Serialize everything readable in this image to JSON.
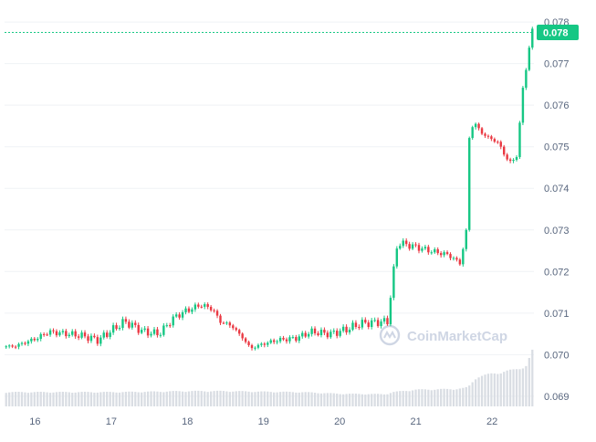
{
  "colors": {
    "up": "#16c784",
    "down": "#ea3943",
    "grid": "#eff2f5",
    "volume": "#d9dde3",
    "badge": "#16c784"
  },
  "watermark": {
    "text": "CoinMarketCap",
    "icon": "coinmarketcap-logo-icon"
  },
  "current_price": {
    "label": "0.078",
    "value": 0.07775
  },
  "chart_data": {
    "type": "candlestick",
    "title": "",
    "xlabel": "",
    "ylabel": "",
    "ylim": [
      0.0688,
      0.0782
    ],
    "y_ticks": [
      {
        "label": "0.078",
        "value": 0.078
      },
      {
        "label": "0.077",
        "value": 0.077
      },
      {
        "label": "0.076",
        "value": 0.076
      },
      {
        "label": "0.075",
        "value": 0.075
      },
      {
        "label": "0.074",
        "value": 0.074
      },
      {
        "label": "0.073",
        "value": 0.073
      },
      {
        "label": "0.072",
        "value": 0.072
      },
      {
        "label": "0.071",
        "value": 0.071
      },
      {
        "label": "0.070",
        "value": 0.07
      },
      {
        "label": "0.069",
        "value": 0.069
      }
    ],
    "x_range": [
      15.6,
      22.55
    ],
    "x_ticks": [
      {
        "label": "16",
        "value": 16
      },
      {
        "label": "17",
        "value": 17
      },
      {
        "label": "18",
        "value": 18
      },
      {
        "label": "19",
        "value": 19
      },
      {
        "label": "20",
        "value": 20
      },
      {
        "label": "21",
        "value": 21
      },
      {
        "label": "22",
        "value": 22
      }
    ],
    "grid": true,
    "close_anchors": [
      [
        15.6,
        0.0702
      ],
      [
        15.75,
        0.0702
      ],
      [
        15.9,
        0.0703
      ],
      [
        16.05,
        0.0704
      ],
      [
        16.2,
        0.07055
      ],
      [
        16.45,
        0.0705
      ],
      [
        16.65,
        0.07045
      ],
      [
        16.85,
        0.07035
      ],
      [
        17.0,
        0.07055
      ],
      [
        17.2,
        0.0708
      ],
      [
        17.45,
        0.07055
      ],
      [
        17.65,
        0.0705
      ],
      [
        17.85,
        0.0709
      ],
      [
        18.0,
        0.07105
      ],
      [
        18.2,
        0.0712
      ],
      [
        18.35,
        0.0711
      ],
      [
        18.45,
        0.0708
      ],
      [
        18.6,
        0.0707
      ],
      [
        18.75,
        0.0704
      ],
      [
        18.85,
        0.07015
      ],
      [
        19.0,
        0.07025
      ],
      [
        19.2,
        0.07035
      ],
      [
        19.45,
        0.0704
      ],
      [
        19.65,
        0.07055
      ],
      [
        19.9,
        0.0705
      ],
      [
        20.1,
        0.0706
      ],
      [
        20.3,
        0.07075
      ],
      [
        20.65,
        0.0708
      ],
      [
        20.72,
        0.0719
      ],
      [
        20.78,
        0.0727
      ],
      [
        21.0,
        0.0726
      ],
      [
        21.2,
        0.0725
      ],
      [
        21.45,
        0.0724
      ],
      [
        21.6,
        0.0722
      ],
      [
        21.68,
        0.0729
      ],
      [
        21.72,
        0.0752
      ],
      [
        21.78,
        0.0756
      ],
      [
        21.9,
        0.0753
      ],
      [
        22.1,
        0.0751
      ],
      [
        22.25,
        0.0746
      ],
      [
        22.35,
        0.0748
      ],
      [
        22.43,
        0.0765
      ],
      [
        22.55,
        0.0778
      ]
    ],
    "volume_profile": [
      [
        15.6,
        0.7
      ],
      [
        16.0,
        0.7
      ],
      [
        16.5,
        0.7
      ],
      [
        17.0,
        0.7
      ],
      [
        17.5,
        0.72
      ],
      [
        18.0,
        0.75
      ],
      [
        18.5,
        0.75
      ],
      [
        19.0,
        0.72
      ],
      [
        19.5,
        0.7
      ],
      [
        20.0,
        0.62
      ],
      [
        20.6,
        0.6
      ],
      [
        20.7,
        0.7
      ],
      [
        21.0,
        0.82
      ],
      [
        21.5,
        0.85
      ],
      [
        21.65,
        0.9
      ],
      [
        21.7,
        1.0
      ],
      [
        21.8,
        1.45
      ],
      [
        22.0,
        1.6
      ],
      [
        22.3,
        1.8
      ],
      [
        22.45,
        2.0
      ],
      [
        22.55,
        2.9
      ]
    ]
  }
}
